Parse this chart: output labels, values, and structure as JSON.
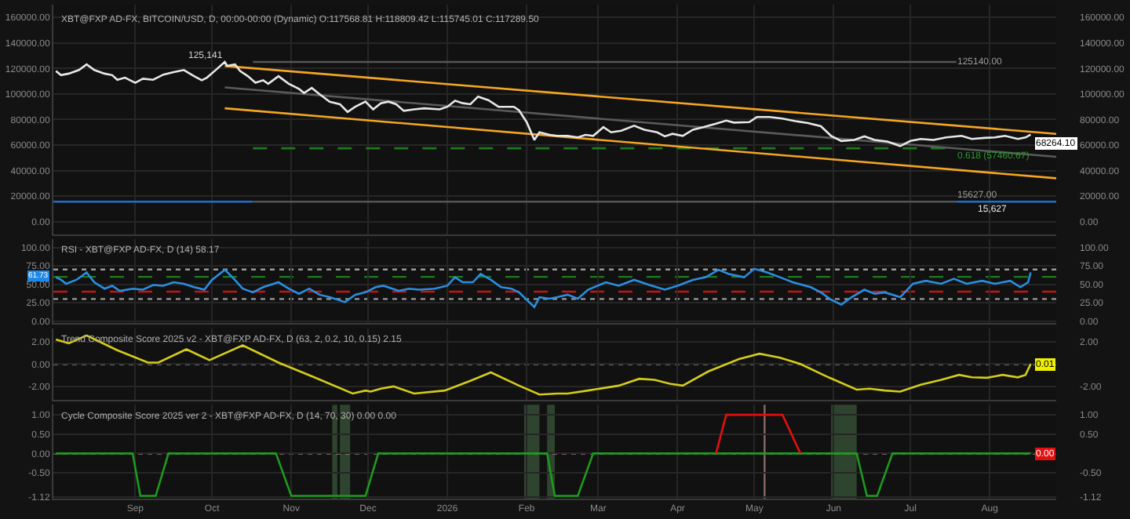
{
  "chart_data": [
    {
      "type": "line",
      "title": "XBT@FXP AD-FX, BITCOIN/USD, D, 00:00-00:00 (Dynamic) O:117568.81 H:118809.42 L:115745.01 C:117289.50",
      "xlim": [
        "2025-07-31",
        "2026-08-27"
      ],
      "xticks": [
        {
          "value": "2025-09-01",
          "label": null
        },
        {
          "value": "2025-10-01",
          "label": null
        },
        {
          "value": "2025-11-01",
          "label": null
        },
        {
          "value": "2025-12-01",
          "label": null
        },
        {
          "value": "2026-01-01",
          "label": null
        },
        {
          "value": "2026-02-01",
          "label": null
        },
        {
          "value": "2026-03-01",
          "label": null
        },
        {
          "value": "2026-04-01",
          "label": null
        },
        {
          "value": "2026-05-01",
          "label": null
        },
        {
          "value": "2026-06-01",
          "label": null
        },
        {
          "value": "2026-07-01",
          "label": null
        },
        {
          "value": "2026-08-01",
          "label": null
        }
      ],
      "ylim": [
        -10000,
        170000
      ],
      "yticks": [
        {
          "value": 0,
          "label": "0.00"
        },
        {
          "value": 20000,
          "label": "20000.00"
        },
        {
          "value": 40000,
          "label": "40000.00"
        },
        {
          "value": 60000,
          "label": "60000.00"
        },
        {
          "value": 80000,
          "label": "80000.00"
        },
        {
          "value": 100000,
          "label": "100000.00"
        },
        {
          "value": 120000,
          "label": "120000.00"
        },
        {
          "value": 140000,
          "label": "140000.00"
        },
        {
          "value": 160000,
          "label": "160000.00"
        }
      ],
      "y2lim": [
        -10000,
        170000
      ],
      "y2ticks": [
        {
          "value": 0,
          "label": "0.00"
        },
        {
          "value": 20000,
          "label": "20000.00"
        },
        {
          "value": 40000,
          "label": "40000.00"
        },
        {
          "value": 60000,
          "label": "60000.00"
        },
        {
          "value": 80000,
          "label": "80000.00"
        },
        {
          "value": 100000,
          "label": "100000.00"
        },
        {
          "value": 120000,
          "label": "120000.00"
        },
        {
          "value": 140000,
          "label": "140000.00"
        },
        {
          "value": 160000,
          "label": "160000.00"
        }
      ],
      "tick_labels": "y",
      "grid": true,
      "series": [
        {
          "color": "#555555",
          "x": [
            "2025-10-17",
            "2026-07-19"
          ],
          "values": [
            125140,
            125140
          ]
        },
        {
          "color": "#1e7a1e",
          "line_style": "dashed",
          "x": [
            "2025-10-17",
            "2026-07-19"
          ],
          "values": [
            57460.67,
            57460.67
          ]
        },
        {
          "color": "#1f6fd0",
          "x": [
            "2025-07-31",
            "2025-10-17"
          ],
          "values": [
            15627,
            15627
          ]
        },
        {
          "color": "#555555",
          "x": [
            "2025-10-17",
            "2026-07-19"
          ],
          "values": [
            15627,
            15627
          ]
        },
        {
          "color": "#1f6fd0",
          "x": [
            "2026-07-19",
            "2026-08-27"
          ],
          "values": [
            15627,
            15627
          ]
        },
        {
          "color": "#5a5a5a",
          "x": [
            "2025-10-06",
            "2026-08-27"
          ],
          "values": [
            105200,
            50800
          ]
        },
        {
          "color": "#f5a623",
          "x": [
            "2025-10-06",
            "2026-08-27"
          ],
          "values": [
            122000,
            68800
          ]
        },
        {
          "color": "#f5a623",
          "x": [
            "2025-10-06",
            "2026-08-27"
          ],
          "values": [
            88800,
            34000
          ]
        },
        {
          "color": "#e8e8e8",
          "x": [
            "2025-08-01",
            "2025-08-03",
            "2025-08-06",
            "2025-08-10",
            "2025-08-13",
            "2025-08-16",
            "2025-08-20",
            "2025-08-23",
            "2025-08-25",
            "2025-08-28",
            "2025-09-01",
            "2025-09-04",
            "2025-09-08",
            "2025-09-12",
            "2025-09-16",
            "2025-09-20",
            "2025-09-24",
            "2025-09-27",
            "2025-09-29",
            "2025-10-02",
            "2025-10-06",
            "2025-10-07",
            "2025-10-10",
            "2025-10-12",
            "2025-10-15",
            "2025-10-18",
            "2025-10-21",
            "2025-10-23",
            "2025-10-27",
            "2025-10-31",
            "2025-11-04",
            "2025-11-06",
            "2025-11-09",
            "2025-11-12",
            "2025-11-16",
            "2025-11-20",
            "2025-11-23",
            "2025-11-26",
            "2025-11-30",
            "2025-12-03",
            "2025-12-06",
            "2025-12-09",
            "2025-12-12",
            "2025-12-15",
            "2025-12-19",
            "2025-12-23",
            "2025-12-29",
            "2026-01-01",
            "2026-01-04",
            "2026-01-07",
            "2026-01-10",
            "2026-01-13",
            "2026-01-17",
            "2026-01-21",
            "2026-01-27",
            "2026-01-29",
            "2026-02-01",
            "2026-02-04",
            "2026-02-06",
            "2026-02-10",
            "2026-02-13",
            "2026-02-17",
            "2026-02-21",
            "2026-02-24",
            "2026-02-27",
            "2026-03-03",
            "2026-03-06",
            "2026-03-10",
            "2026-03-15",
            "2026-03-19",
            "2026-03-24",
            "2026-03-27",
            "2026-03-30",
            "2026-04-03",
            "2026-04-07",
            "2026-04-11",
            "2026-04-16",
            "2026-04-20",
            "2026-04-23",
            "2026-04-29",
            "2026-05-02",
            "2026-05-07",
            "2026-05-12",
            "2026-05-17",
            "2026-05-22",
            "2026-05-27",
            "2026-05-31",
            "2026-06-04",
            "2026-06-09",
            "2026-06-13",
            "2026-06-17",
            "2026-06-22",
            "2026-06-27",
            "2026-07-01",
            "2026-07-05",
            "2026-07-10",
            "2026-07-15",
            "2026-07-21",
            "2026-07-25",
            "2026-07-30",
            "2026-08-03",
            "2026-08-07",
            "2026-08-12",
            "2026-08-15",
            "2026-08-17"
          ],
          "values": [
            118000,
            114800,
            116000,
            118800,
            123200,
            118800,
            116000,
            114800,
            111200,
            112800,
            108800,
            112000,
            111200,
            115200,
            117200,
            118800,
            114000,
            110800,
            112800,
            118000,
            125141,
            122000,
            123200,
            118000,
            114000,
            108800,
            110800,
            108000,
            114000,
            108000,
            104000,
            100800,
            104800,
            100000,
            94000,
            92000,
            86000,
            90000,
            94000,
            88000,
            92800,
            94000,
            92000,
            86800,
            88000,
            88800,
            88000,
            90000,
            94800,
            92800,
            92000,
            98000,
            95200,
            90000,
            90000,
            87200,
            78000,
            64000,
            70000,
            68000,
            67200,
            67200,
            66000,
            68000,
            67200,
            74000,
            70000,
            71200,
            75200,
            72000,
            70000,
            66800,
            68800,
            67200,
            72000,
            74000,
            76800,
            79200,
            77600,
            78000,
            82000,
            82000,
            80800,
            78800,
            77200,
            74800,
            67200,
            63200,
            64000,
            66800,
            64000,
            62800,
            59200,
            63200,
            64800,
            64000,
            66000,
            67200,
            64800,
            65600,
            66000,
            67200,
            64800,
            66000,
            68264.1
          ]
        }
      ],
      "annotations": [
        {
          "text": "125,141",
          "x": "2025-10-06",
          "y": 125141
        },
        {
          "text": "125140.00",
          "x": "2026-07-19",
          "y": 125140
        },
        {
          "text": "0.618 (57460.67)",
          "x": "2026-07-19",
          "y": 57460.67
        },
        {
          "text": "15627.00",
          "x": "2026-07-19",
          "y": 15627
        },
        {
          "text": "15,627",
          "x": "2026-08-02",
          "y": 15627
        },
        {
          "text": "68264.10",
          "x": "2026-08-17",
          "y": 68264.1
        }
      ]
    },
    {
      "type": "line",
      "title": "RSI - XBT@FXP AD-FX, D (14) 58.17",
      "xlim": [
        "2025-07-31",
        "2026-08-27"
      ],
      "xticks": [
        {
          "value": "2025-09-01",
          "label": null
        },
        {
          "value": "2025-10-01",
          "label": null
        },
        {
          "value": "2025-11-01",
          "label": null
        },
        {
          "value": "2025-12-01",
          "label": null
        },
        {
          "value": "2026-01-01",
          "label": null
        },
        {
          "value": "2026-02-01",
          "label": null
        },
        {
          "value": "2026-03-01",
          "label": null
        },
        {
          "value": "2026-04-01",
          "label": null
        },
        {
          "value": "2026-05-01",
          "label": null
        },
        {
          "value": "2026-06-01",
          "label": null
        },
        {
          "value": "2026-07-01",
          "label": null
        },
        {
          "value": "2026-08-01",
          "label": null
        }
      ],
      "ylim": [
        -3,
        111
      ],
      "yticks": [
        {
          "value": 0,
          "label": "0.00"
        },
        {
          "value": 25,
          "label": "25.00"
        },
        {
          "value": 50,
          "label": "50.00"
        },
        {
          "value": 75,
          "label": "75.00"
        },
        {
          "value": 100,
          "label": "100.00"
        }
      ],
      "y2lim": [
        -3,
        111
      ],
      "y2ticks": [
        {
          "value": 0,
          "label": "0.00"
        },
        {
          "value": 25,
          "label": "25.00"
        },
        {
          "value": 50,
          "label": "50.00"
        },
        {
          "value": 75,
          "label": "75.00"
        },
        {
          "value": 100,
          "label": "100.00"
        }
      ],
      "tick_labels": "y",
      "grid": true,
      "ref_lines": [
        {
          "axis": "y",
          "value": 70,
          "color": "#9a9a9a",
          "line_style": "dotted"
        },
        {
          "axis": "y",
          "value": 60,
          "color": "#1e7a1e",
          "line_style": "dashed"
        },
        {
          "axis": "y",
          "value": 40,
          "color": "#c81414",
          "line_style": "dashed"
        },
        {
          "axis": "y",
          "value": 30,
          "color": "#9a9a9a",
          "line_style": "dotted"
        }
      ],
      "series": [
        {
          "color": "#2a8ee0",
          "x": [
            "2025-08-01",
            "2025-08-03",
            "2025-08-05",
            "2025-08-09",
            "2025-08-13",
            "2025-08-16",
            "2025-08-20",
            "2025-08-23",
            "2025-08-26",
            "2025-08-31",
            "2025-09-04",
            "2025-09-08",
            "2025-09-12",
            "2025-09-16",
            "2025-09-20",
            "2025-09-24",
            "2025-09-28",
            "2025-10-01",
            "2025-10-06",
            "2025-10-09",
            "2025-10-13",
            "2025-10-17",
            "2025-10-21",
            "2025-10-27",
            "2025-10-31",
            "2025-11-04",
            "2025-11-08",
            "2025-11-12",
            "2025-11-16",
            "2025-11-22",
            "2025-11-26",
            "2025-11-30",
            "2025-12-04",
            "2025-12-07",
            "2025-12-13",
            "2025-12-17",
            "2025-12-21",
            "2025-12-27",
            "2026-01-01",
            "2026-01-04",
            "2026-01-07",
            "2026-01-11",
            "2026-01-14",
            "2026-01-18",
            "2026-01-22",
            "2026-01-26",
            "2026-01-29",
            "2026-02-01",
            "2026-02-04",
            "2026-02-06",
            "2026-02-10",
            "2026-02-13",
            "2026-02-17",
            "2026-02-21",
            "2026-02-25",
            "2026-03-04",
            "2026-03-09",
            "2026-03-15",
            "2026-03-21",
            "2026-03-27",
            "2026-04-01",
            "2026-04-07",
            "2026-04-12",
            "2026-04-17",
            "2026-04-21",
            "2026-04-27",
            "2026-05-01",
            "2026-05-06",
            "2026-05-11",
            "2026-05-16",
            "2026-05-23",
            "2026-05-27",
            "2026-05-31",
            "2026-06-04",
            "2026-06-08",
            "2026-06-13",
            "2026-06-17",
            "2026-06-21",
            "2026-06-27",
            "2026-07-02",
            "2026-07-07",
            "2026-07-13",
            "2026-07-18",
            "2026-07-23",
            "2026-07-29",
            "2026-08-03",
            "2026-08-09",
            "2026-08-13",
            "2026-08-16",
            "2026-08-17"
          ],
          "values": [
            59.5,
            56,
            50.7,
            56,
            66,
            52.7,
            44,
            48,
            41,
            44,
            42.6,
            49,
            48,
            52.7,
            50.7,
            46,
            42.6,
            56,
            69.6,
            59.5,
            44,
            39,
            46,
            52.7,
            44,
            37,
            44,
            35.8,
            32.4,
            25.7,
            35.8,
            39,
            46,
            48,
            41,
            44,
            42.6,
            44,
            48,
            59.5,
            52.7,
            52.7,
            64,
            56,
            46,
            44,
            39,
            29,
            19,
            32.4,
            30.4,
            32.4,
            35.8,
            30.4,
            42.6,
            52.7,
            48,
            56,
            49,
            42.6,
            48,
            56,
            59.5,
            69.6,
            64,
            59.5,
            71,
            66,
            59.5,
            52.7,
            46,
            39,
            29,
            22.3,
            32.4,
            42.6,
            37,
            39,
            32.4,
            50.7,
            54.7,
            50.7,
            57.4,
            50.7,
            54.7,
            50.7,
            54.7,
            46,
            52.7,
            66
          ]
        }
      ],
      "annotations": [
        {
          "text": "61.73",
          "x": "2025-07-31",
          "y": 61.73
        }
      ]
    },
    {
      "type": "line",
      "title": "Trend Composite Score 2025 v2 - XBT@FXP AD-FX, D (63, 2, 0.2, 10, 0.15) 2.15",
      "xlim": [
        "2025-07-31",
        "2026-08-27"
      ],
      "xticks": [
        {
          "value": "2025-09-01",
          "label": null
        },
        {
          "value": "2025-10-01",
          "label": null
        },
        {
          "value": "2025-11-01",
          "label": null
        },
        {
          "value": "2025-12-01",
          "label": null
        },
        {
          "value": "2026-01-01",
          "label": null
        },
        {
          "value": "2026-02-01",
          "label": null
        },
        {
          "value": "2026-03-01",
          "label": null
        },
        {
          "value": "2026-04-01",
          "label": null
        },
        {
          "value": "2026-05-01",
          "label": null
        },
        {
          "value": "2026-06-01",
          "label": null
        },
        {
          "value": "2026-07-01",
          "label": null
        },
        {
          "value": "2026-08-01",
          "label": null
        }
      ],
      "ylim": [
        -3.2,
        3.2
      ],
      "yticks": [
        {
          "value": -2,
          "label": "-2.00"
        },
        {
          "value": 0,
          "label": "0.00"
        },
        {
          "value": 2,
          "label": "2.00"
        }
      ],
      "y2lim": [
        -3.2,
        3.2
      ],
      "y2ticks": [
        {
          "value": -2,
          "label": "-2.00"
        },
        {
          "value": 2,
          "label": "2.00"
        }
      ],
      "tick_labels": "y",
      "grid": true,
      "ref_lines": [
        {
          "axis": "y",
          "value": 0,
          "color": "#bbbbbb",
          "line_style": "dotted"
        }
      ],
      "series": [
        {
          "color": "#d4cc1c",
          "x": [
            "2025-08-01",
            "2025-08-06",
            "2025-08-13",
            "2025-08-18",
            "2025-08-25",
            "2025-09-06",
            "2025-09-10",
            "2025-09-21",
            "2025-09-30",
            "2025-10-13",
            "2025-10-27",
            "2025-11-10",
            "2025-11-25",
            "2025-11-30",
            "2025-12-02",
            "2025-12-06",
            "2025-12-11",
            "2025-12-19",
            "2025-12-31",
            "2026-01-10",
            "2026-01-18",
            "2026-01-29",
            "2026-02-06",
            "2026-02-13",
            "2026-02-17",
            "2026-02-25",
            "2026-03-09",
            "2026-03-17",
            "2026-03-23",
            "2026-03-29",
            "2026-04-03",
            "2026-04-13",
            "2026-04-25",
            "2026-05-03",
            "2026-05-11",
            "2026-05-19",
            "2026-05-30",
            "2026-06-10",
            "2026-06-15",
            "2026-06-21",
            "2026-06-27",
            "2026-07-05",
            "2026-07-13",
            "2026-07-20",
            "2026-07-25",
            "2026-07-31",
            "2026-08-06",
            "2026-08-12",
            "2026-08-15",
            "2026-08-17"
          ],
          "values": [
            2.2,
            1.85,
            2.55,
            2,
            1.23,
            0.13,
            0.13,
            1.32,
            0.35,
            1.67,
            0.13,
            -1.19,
            -2.64,
            -2.37,
            -2.46,
            -2.2,
            -2,
            -2.64,
            -2.37,
            -1.5,
            -0.75,
            -1.93,
            -2.73,
            -2.64,
            -2.64,
            -2.37,
            -1.93,
            -1.32,
            -1.41,
            -1.76,
            -1.93,
            -0.66,
            0.44,
            0.92,
            0.57,
            0,
            -1.19,
            -2.29,
            -2.2,
            -2.37,
            -2.46,
            -1.85,
            -1.41,
            -0.97,
            -1.19,
            -1.23,
            -0.97,
            -1.19,
            -0.97,
            0.01
          ]
        }
      ],
      "annotations": [
        {
          "text": "0.01",
          "x": "2026-08-17",
          "y": 0.01
        }
      ]
    },
    {
      "type": "line",
      "title": "Cycle Composite Score 2025 ver 2 - XBT@FXP AD-FX, D (14, 70, 30) 0.00 0.00",
      "xlim": [
        "2025-07-31",
        "2026-08-27"
      ],
      "xticks": [
        {
          "value": "2025-09-01",
          "label": "Sep"
        },
        {
          "value": "2025-10-01",
          "label": "Oct"
        },
        {
          "value": "2025-11-01",
          "label": "Nov"
        },
        {
          "value": "2025-12-01",
          "label": "Dec"
        },
        {
          "value": "2026-01-01",
          "label": "2026"
        },
        {
          "value": "2026-02-01",
          "label": "Feb"
        },
        {
          "value": "2026-03-01",
          "label": "Mar"
        },
        {
          "value": "2026-04-01",
          "label": "Apr"
        },
        {
          "value": "2026-05-01",
          "label": "May"
        },
        {
          "value": "2026-06-01",
          "label": "Jun"
        },
        {
          "value": "2026-07-01",
          "label": "Jul"
        },
        {
          "value": "2026-08-01",
          "label": "Aug"
        }
      ],
      "ylim": [
        -1.17,
        1.26
      ],
      "yticks": [
        {
          "value": -1.12,
          "label": "-1.12"
        },
        {
          "value": -0.5,
          "label": "-0.50"
        },
        {
          "value": 0,
          "label": "0.00"
        },
        {
          "value": 0.5,
          "label": "0.50"
        },
        {
          "value": 1,
          "label": "1.00"
        }
      ],
      "y2lim": [
        -1.17,
        1.26
      ],
      "y2ticks": [
        {
          "value": -1.12,
          "label": "-1.12"
        },
        {
          "value": -0.5,
          "label": "-0.50"
        },
        {
          "value": 0.5,
          "label": "0.50"
        },
        {
          "value": 1,
          "label": "1.00"
        }
      ],
      "grid": true,
      "ref_lines": [
        {
          "axis": "y",
          "value": 0,
          "color": "#d8b0b0",
          "line_style": "dotted"
        },
        {
          "axis": "x",
          "value": "2026-05-05",
          "color": "#8a6a60"
        }
      ],
      "bands": [
        {
          "axis": "x",
          "from": "2025-11-17",
          "to": "2025-11-19",
          "color": "#3a5a3a"
        },
        {
          "axis": "x",
          "from": "2025-11-20",
          "to": "2025-11-24",
          "color": "#3a5a3a"
        },
        {
          "axis": "x",
          "from": "2026-01-31",
          "to": "2026-02-06",
          "color": "#3a5a3a"
        },
        {
          "axis": "x",
          "from": "2026-02-09",
          "to": "2026-02-12",
          "color": "#3a5a3a"
        },
        {
          "axis": "x",
          "from": "2026-05-31",
          "to": "2026-06-10",
          "color": "#3a5a3a"
        }
      ],
      "series": [
        {
          "color": "#1e9a1e",
          "x": [
            "2025-08-01",
            "2025-08-31",
            "2025-09-03",
            "2025-09-09",
            "2025-09-14",
            "2025-10-26",
            "2025-11-01",
            "2025-11-30",
            "2025-12-05",
            "2026-02-09",
            "2026-02-12",
            "2026-02-21",
            "2026-02-27",
            "2026-06-10",
            "2026-06-14",
            "2026-06-18",
            "2026-06-24",
            "2026-08-17"
          ],
          "values": [
            0,
            0,
            -1.1,
            -1.1,
            0,
            0,
            -1.1,
            -1.1,
            0,
            0,
            -1.1,
            -1.1,
            0,
            0,
            -1.1,
            -1.1,
            0,
            0
          ]
        },
        {
          "color": "#e01010",
          "x": [
            "2026-04-16",
            "2026-04-20",
            "2026-05-12",
            "2026-05-19"
          ],
          "values": [
            0,
            1,
            1,
            0
          ]
        }
      ],
      "annotations": [
        {
          "text": "0.00",
          "x": "2026-08-17",
          "y": 0
        }
      ]
    }
  ]
}
